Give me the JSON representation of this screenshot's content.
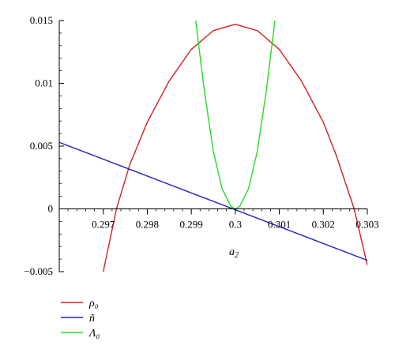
{
  "chart_data": {
    "type": "line",
    "xlabel": "a₂",
    "ylabel": "",
    "xlim": [
      0.296,
      0.303
    ],
    "ylim": [
      -0.005,
      0.015
    ],
    "x_ticks": [
      "0.297",
      "0.298",
      "0.299",
      "0.3",
      "0.301",
      "0.302",
      "0.303"
    ],
    "y_ticks": [
      "0.015",
      "0.01",
      "0.005",
      "0",
      "−0.005"
    ],
    "y_tick_values": [
      0.015,
      0.01,
      0.005,
      0,
      -0.005
    ],
    "x_tick_values": [
      0.297,
      0.298,
      0.299,
      0.3,
      0.301,
      0.302,
      0.303
    ],
    "grid": false,
    "legend_position": "bottom-left",
    "series": [
      {
        "name": "ρ₀",
        "color": "#d81e1e",
        "x": [
          0.297,
          0.2973,
          0.2976,
          0.298,
          0.2985,
          0.299,
          0.2995,
          0.3,
          0.3005,
          0.301,
          0.3015,
          0.302,
          0.3023,
          0.3027,
          0.303
        ],
        "y": [
          -0.005,
          0,
          0.0035,
          0.0069,
          0.0102,
          0.0127,
          0.0142,
          0.0147,
          0.0142,
          0.0127,
          0.0102,
          0.0069,
          0.0042,
          0,
          -0.0045
        ]
      },
      {
        "name": "ñ",
        "color": "#1f1fc8",
        "x": [
          0.296,
          0.303
        ],
        "y": [
          0.0053,
          -0.0041
        ]
      },
      {
        "name": "Λ₀",
        "color": "#22dd22",
        "x": [
          0.2991,
          0.2993,
          0.2995,
          0.2997,
          0.2999,
          0.3,
          0.3001,
          0.3003,
          0.3005,
          0.3007,
          0.3009
        ],
        "y": [
          0.015,
          0.0093,
          0.0046,
          0.0016,
          0.0002,
          0,
          0.0002,
          0.0016,
          0.0046,
          0.0093,
          0.015
        ]
      }
    ]
  }
}
